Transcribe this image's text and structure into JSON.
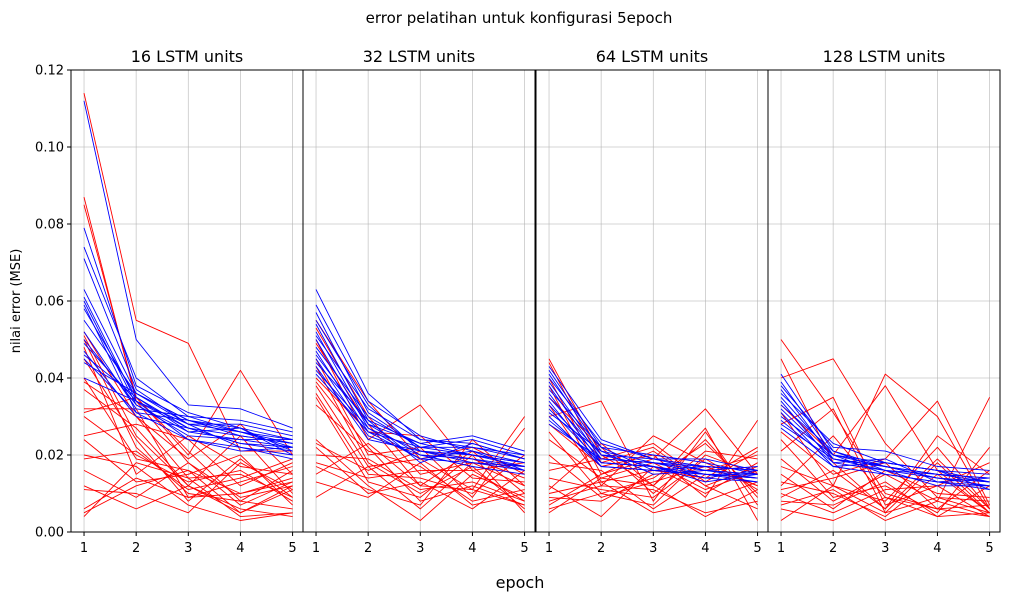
{
  "figure": {
    "suptitle": "error pelatihan untuk konfigurasi 5epoch",
    "xlabel": "epoch",
    "ylabel": "nilai error (MSE)"
  },
  "colors": {
    "train": "#0000ff",
    "val": "#ff0000"
  },
  "chart_data": {
    "type": "line",
    "x": [
      1,
      2,
      3,
      4,
      5
    ],
    "ylim": [
      0,
      0.12
    ],
    "xlim": [
      0.75,
      5.2
    ],
    "yticks": [
      "0.00",
      "0.02",
      "0.04",
      "0.06",
      "0.08",
      "0.10",
      "0.12"
    ],
    "xticks": [
      "1",
      "2",
      "3",
      "4",
      "5"
    ],
    "grid": true,
    "panels": [
      {
        "title": "16 LSTM units",
        "blue": [
          [
            0.112,
            0.05,
            0.033,
            0.032,
            0.027
          ],
          [
            0.079,
            0.038,
            0.031,
            0.027,
            0.024
          ],
          [
            0.074,
            0.04,
            0.03,
            0.029,
            0.026
          ],
          [
            0.071,
            0.037,
            0.028,
            0.028,
            0.025
          ],
          [
            0.063,
            0.036,
            0.029,
            0.026,
            0.024
          ],
          [
            0.061,
            0.034,
            0.027,
            0.025,
            0.023
          ],
          [
            0.06,
            0.033,
            0.026,
            0.024,
            0.022
          ],
          [
            0.059,
            0.031,
            0.029,
            0.027,
            0.021
          ],
          [
            0.058,
            0.035,
            0.027,
            0.023,
            0.022
          ],
          [
            0.055,
            0.036,
            0.028,
            0.022,
            0.02
          ],
          [
            0.052,
            0.032,
            0.03,
            0.026,
            0.023
          ],
          [
            0.05,
            0.033,
            0.025,
            0.024,
            0.024
          ],
          [
            0.049,
            0.034,
            0.028,
            0.026,
            0.022
          ],
          [
            0.047,
            0.03,
            0.027,
            0.023,
            0.021
          ],
          [
            0.046,
            0.035,
            0.026,
            0.027,
            0.02
          ],
          [
            0.045,
            0.031,
            0.024,
            0.022,
            0.019
          ],
          [
            0.044,
            0.036,
            0.029,
            0.025,
            0.023
          ],
          [
            0.04,
            0.034,
            0.024,
            0.021,
            0.022
          ]
        ],
        "red": [
          [
            0.114,
            0.055,
            0.049,
            0.021,
            0.021
          ],
          [
            0.087,
            0.034,
            0.018,
            0.007,
            0.013
          ],
          [
            0.085,
            0.035,
            0.02,
            0.042,
            0.02
          ],
          [
            0.052,
            0.03,
            0.014,
            0.004,
            0.005
          ],
          [
            0.051,
            0.025,
            0.012,
            0.005,
            0.012
          ],
          [
            0.05,
            0.022,
            0.01,
            0.008,
            0.006
          ],
          [
            0.048,
            0.015,
            0.025,
            0.017,
            0.015
          ],
          [
            0.045,
            0.024,
            0.008,
            0.019,
            0.009
          ],
          [
            0.04,
            0.019,
            0.016,
            0.005,
            0.011
          ],
          [
            0.039,
            0.03,
            0.019,
            0.028,
            0.015
          ],
          [
            0.037,
            0.027,
            0.012,
            0.025,
            0.01
          ],
          [
            0.032,
            0.032,
            0.009,
            0.01,
            0.014
          ],
          [
            0.031,
            0.035,
            0.021,
            0.008,
            0.016
          ],
          [
            0.03,
            0.02,
            0.013,
            0.016,
            0.008
          ],
          [
            0.025,
            0.028,
            0.024,
            0.012,
            0.018
          ],
          [
            0.024,
            0.013,
            0.015,
            0.02,
            0.007
          ],
          [
            0.02,
            0.017,
            0.007,
            0.003,
            0.005
          ],
          [
            0.019,
            0.021,
            0.011,
            0.014,
            0.019
          ],
          [
            0.016,
            0.009,
            0.018,
            0.009,
            0.012
          ],
          [
            0.012,
            0.006,
            0.012,
            0.006,
            0.004
          ],
          [
            0.011,
            0.01,
            0.005,
            0.018,
            0.011
          ],
          [
            0.006,
            0.014,
            0.009,
            0.013,
            0.017
          ],
          [
            0.005,
            0.012,
            0.016,
            0.01,
            0.013
          ],
          [
            0.004,
            0.018,
            0.014,
            0.015,
            0.009
          ]
        ]
      },
      {
        "title": "32 LSTM units",
        "blue": [
          [
            0.063,
            0.036,
            0.024,
            0.023,
            0.019
          ],
          [
            0.059,
            0.034,
            0.025,
            0.021,
            0.018
          ],
          [
            0.057,
            0.031,
            0.022,
            0.022,
            0.02
          ],
          [
            0.055,
            0.033,
            0.021,
            0.02,
            0.017
          ],
          [
            0.054,
            0.029,
            0.023,
            0.025,
            0.021
          ],
          [
            0.052,
            0.028,
            0.02,
            0.019,
            0.016
          ],
          [
            0.051,
            0.032,
            0.024,
            0.022,
            0.019
          ],
          [
            0.05,
            0.027,
            0.021,
            0.018,
            0.017
          ],
          [
            0.048,
            0.03,
            0.022,
            0.024,
            0.02
          ],
          [
            0.047,
            0.026,
            0.019,
            0.021,
            0.016
          ],
          [
            0.046,
            0.028,
            0.023,
            0.02,
            0.018
          ],
          [
            0.045,
            0.025,
            0.02,
            0.017,
            0.015
          ],
          [
            0.044,
            0.029,
            0.018,
            0.023,
            0.019
          ],
          [
            0.043,
            0.024,
            0.021,
            0.019,
            0.017
          ],
          [
            0.042,
            0.027,
            0.019,
            0.018,
            0.016
          ],
          [
            0.041,
            0.026,
            0.022,
            0.02,
            0.018
          ]
        ],
        "red": [
          [
            0.055,
            0.034,
            0.019,
            0.011,
            0.03
          ],
          [
            0.053,
            0.03,
            0.015,
            0.018,
            0.012
          ],
          [
            0.05,
            0.024,
            0.033,
            0.016,
            0.008
          ],
          [
            0.049,
            0.028,
            0.012,
            0.021,
            0.01
          ],
          [
            0.045,
            0.02,
            0.022,
            0.009,
            0.027
          ],
          [
            0.043,
            0.018,
            0.01,
            0.017,
            0.006
          ],
          [
            0.04,
            0.026,
            0.025,
            0.014,
            0.013
          ],
          [
            0.039,
            0.022,
            0.008,
            0.012,
            0.007
          ],
          [
            0.038,
            0.017,
            0.019,
            0.022,
            0.015
          ],
          [
            0.036,
            0.015,
            0.014,
            0.01,
            0.02
          ],
          [
            0.035,
            0.013,
            0.009,
            0.02,
            0.005
          ],
          [
            0.033,
            0.021,
            0.017,
            0.008,
            0.011
          ],
          [
            0.024,
            0.012,
            0.003,
            0.015,
            0.009
          ],
          [
            0.023,
            0.016,
            0.021,
            0.019,
            0.014
          ],
          [
            0.022,
            0.01,
            0.013,
            0.006,
            0.016
          ],
          [
            0.02,
            0.019,
            0.011,
            0.013,
            0.008
          ],
          [
            0.018,
            0.014,
            0.016,
            0.016,
            0.018
          ],
          [
            0.017,
            0.011,
            0.007,
            0.024,
            0.012
          ],
          [
            0.015,
            0.023,
            0.012,
            0.011,
            0.007
          ],
          [
            0.013,
            0.009,
            0.018,
            0.007,
            0.01
          ],
          [
            0.009,
            0.017,
            0.006,
            0.018,
            0.017
          ]
        ]
      },
      {
        "title": "64 LSTM units",
        "blue": [
          [
            0.043,
            0.024,
            0.019,
            0.017,
            0.016
          ],
          [
            0.042,
            0.022,
            0.02,
            0.018,
            0.015
          ],
          [
            0.041,
            0.021,
            0.018,
            0.016,
            0.017
          ],
          [
            0.04,
            0.023,
            0.019,
            0.019,
            0.016
          ],
          [
            0.039,
            0.02,
            0.017,
            0.015,
            0.014
          ],
          [
            0.038,
            0.019,
            0.018,
            0.016,
            0.015
          ],
          [
            0.037,
            0.022,
            0.016,
            0.017,
            0.016
          ],
          [
            0.036,
            0.018,
            0.017,
            0.014,
            0.013
          ],
          [
            0.035,
            0.02,
            0.019,
            0.016,
            0.015
          ],
          [
            0.034,
            0.017,
            0.016,
            0.015,
            0.014
          ],
          [
            0.033,
            0.019,
            0.018,
            0.017,
            0.016
          ],
          [
            0.032,
            0.018,
            0.017,
            0.013,
            0.015
          ],
          [
            0.031,
            0.021,
            0.015,
            0.016,
            0.014
          ],
          [
            0.03,
            0.017,
            0.016,
            0.015,
            0.013
          ],
          [
            0.029,
            0.018,
            0.017,
            0.014,
            0.016
          ],
          [
            0.028,
            0.019,
            0.018,
            0.015,
            0.015
          ]
        ],
        "red": [
          [
            0.045,
            0.02,
            0.012,
            0.027,
            0.003
          ],
          [
            0.044,
            0.018,
            0.022,
            0.012,
            0.017
          ],
          [
            0.04,
            0.015,
            0.019,
            0.032,
            0.015
          ],
          [
            0.038,
            0.012,
            0.025,
            0.018,
            0.012
          ],
          [
            0.035,
            0.022,
            0.01,
            0.021,
            0.019
          ],
          [
            0.033,
            0.013,
            0.016,
            0.014,
            0.022
          ],
          [
            0.03,
            0.034,
            0.008,
            0.026,
            0.007
          ],
          [
            0.028,
            0.017,
            0.02,
            0.009,
            0.029
          ],
          [
            0.026,
            0.01,
            0.014,
            0.023,
            0.01
          ],
          [
            0.024,
            0.014,
            0.018,
            0.011,
            0.016
          ],
          [
            0.02,
            0.009,
            0.013,
            0.017,
            0.012
          ],
          [
            0.018,
            0.016,
            0.006,
            0.015,
            0.014
          ],
          [
            0.016,
            0.019,
            0.023,
            0.013,
            0.021
          ],
          [
            0.014,
            0.011,
            0.009,
            0.019,
            0.011
          ],
          [
            0.012,
            0.004,
            0.017,
            0.01,
            0.018
          ],
          [
            0.011,
            0.023,
            0.012,
            0.024,
            0.009
          ],
          [
            0.01,
            0.013,
            0.005,
            0.008,
            0.013
          ],
          [
            0.009,
            0.008,
            0.015,
            0.016,
            0.02
          ],
          [
            0.008,
            0.012,
            0.011,
            0.005,
            0.008
          ],
          [
            0.007,
            0.015,
            0.021,
            0.012,
            0.006
          ],
          [
            0.006,
            0.01,
            0.007,
            0.02,
            0.015
          ],
          [
            0.005,
            0.014,
            0.012,
            0.004,
            0.011
          ]
        ]
      },
      {
        "title": "128 LSTM units",
        "blue": [
          [
            0.041,
            0.021,
            0.017,
            0.015,
            0.014
          ],
          [
            0.039,
            0.02,
            0.018,
            0.016,
            0.013
          ],
          [
            0.038,
            0.022,
            0.021,
            0.017,
            0.016
          ],
          [
            0.037,
            0.019,
            0.016,
            0.014,
            0.012
          ],
          [
            0.036,
            0.023,
            0.018,
            0.016,
            0.015
          ],
          [
            0.035,
            0.02,
            0.017,
            0.015,
            0.013
          ],
          [
            0.034,
            0.018,
            0.019,
            0.013,
            0.012
          ],
          [
            0.033,
            0.021,
            0.016,
            0.015,
            0.014
          ],
          [
            0.032,
            0.019,
            0.017,
            0.014,
            0.013
          ],
          [
            0.031,
            0.017,
            0.018,
            0.016,
            0.011
          ],
          [
            0.03,
            0.02,
            0.015,
            0.013,
            0.014
          ],
          [
            0.029,
            0.018,
            0.016,
            0.012,
            0.012
          ],
          [
            0.028,
            0.019,
            0.017,
            0.014,
            0.013
          ],
          [
            0.027,
            0.017,
            0.015,
            0.013,
            0.011
          ]
        ],
        "red": [
          [
            0.05,
            0.031,
            0.01,
            0.006,
            0.004
          ],
          [
            0.045,
            0.018,
            0.006,
            0.025,
            0.015
          ],
          [
            0.04,
            0.045,
            0.023,
            0.009,
            0.008
          ],
          [
            0.033,
            0.02,
            0.038,
            0.016,
            0.005
          ],
          [
            0.031,
            0.012,
            0.041,
            0.03,
            0.006
          ],
          [
            0.028,
            0.035,
            0.007,
            0.012,
            0.018
          ],
          [
            0.026,
            0.015,
            0.019,
            0.034,
            0.007
          ],
          [
            0.024,
            0.009,
            0.012,
            0.005,
            0.022
          ],
          [
            0.021,
            0.032,
            0.005,
            0.018,
            0.005
          ],
          [
            0.019,
            0.008,
            0.015,
            0.008,
            0.035
          ],
          [
            0.017,
            0.012,
            0.008,
            0.022,
            0.006
          ],
          [
            0.015,
            0.006,
            0.016,
            0.01,
            0.009
          ],
          [
            0.013,
            0.01,
            0.004,
            0.015,
            0.005
          ],
          [
            0.012,
            0.025,
            0.009,
            0.004,
            0.012
          ],
          [
            0.011,
            0.014,
            0.018,
            0.006,
            0.007
          ],
          [
            0.01,
            0.005,
            0.011,
            0.012,
            0.004
          ],
          [
            0.009,
            0.016,
            0.006,
            0.019,
            0.006
          ],
          [
            0.008,
            0.007,
            0.013,
            0.004,
            0.005
          ],
          [
            0.007,
            0.011,
            0.003,
            0.008,
            0.004
          ],
          [
            0.006,
            0.003,
            0.009,
            0.006,
            0.016
          ],
          [
            0.003,
            0.012,
            0.005,
            0.009,
            0.005
          ]
        ]
      }
    ]
  }
}
